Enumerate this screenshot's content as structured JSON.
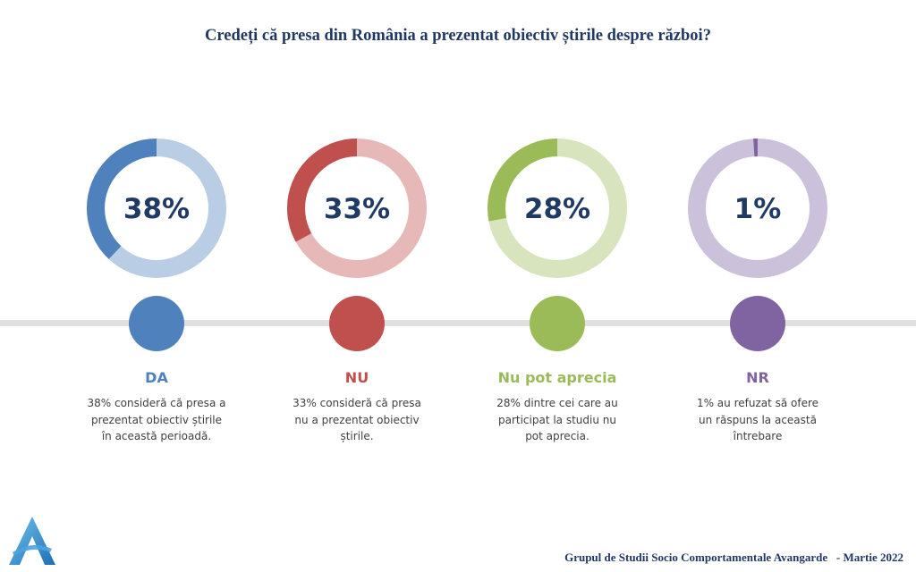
{
  "title": "Credeți că presa din România a prezentat obiectiv știrile despre război?",
  "chart_data": {
    "type": "donut",
    "title": "Credeți că presa din România a prezentat obiectiv știrile despre război?",
    "series": [
      {
        "name": "DA",
        "value": 38,
        "label": "38%",
        "color": "#4f81bd",
        "track_color": "#b9cde5",
        "description": [
          "38% consideră că presa a",
          "prezentat obiectiv știrile",
          "în această perioadă."
        ]
      },
      {
        "name": "NU",
        "value": 33,
        "label": "33%",
        "color": "#c0504d",
        "track_color": "#e6b9b8",
        "description": [
          "33% consideră că presa",
          "nu a prezentat obiectiv",
          "știrile."
        ]
      },
      {
        "name": "Nu pot aprecia",
        "value": 28,
        "label": "28%",
        "color": "#9bbb59",
        "track_color": "#d7e4bd",
        "description": [
          "28% dintre cei care au",
          "participat la studiu nu",
          "pot aprecia."
        ]
      },
      {
        "name": "NR",
        "value": 1,
        "label": "1%",
        "color": "#8064a2",
        "track_color": "#ccc1da",
        "description": [
          "1% au refuzat să ofere",
          "un răspuns la această",
          "întrebare"
        ]
      }
    ],
    "timeline_color": "#e0e0e0",
    "text_color": "#1f3b63"
  },
  "footer": "Grupul de Studii Socio Comportamentale Avangarde   - Martie 2022",
  "logo": {
    "icon": "avangarde-a-logo",
    "colors": [
      "#4aa3df",
      "#1f6fb2"
    ]
  }
}
